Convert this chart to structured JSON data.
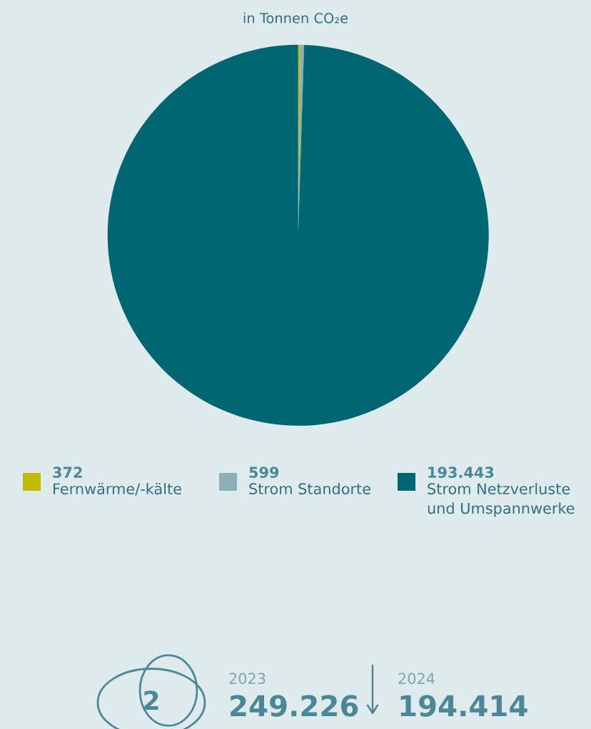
{
  "chart_data": {
    "type": "pie",
    "title": "in Tonnen CO₂e",
    "categories": [
      "Fernwärme/-kälte",
      "Strom Standorte",
      "Strom Netzverluste und Umspannwerke"
    ],
    "values": [
      372,
      599,
      193443
    ],
    "colors": [
      "#c2bc00",
      "#8aafb8",
      "#006672"
    ],
    "data_labels": true,
    "value_labels": [
      "372",
      "599",
      "193.443"
    ],
    "legend": "bottom",
    "annotations": [
      "2",
      "2023",
      "249.226",
      "2024",
      "194.414"
    ]
  }
}
